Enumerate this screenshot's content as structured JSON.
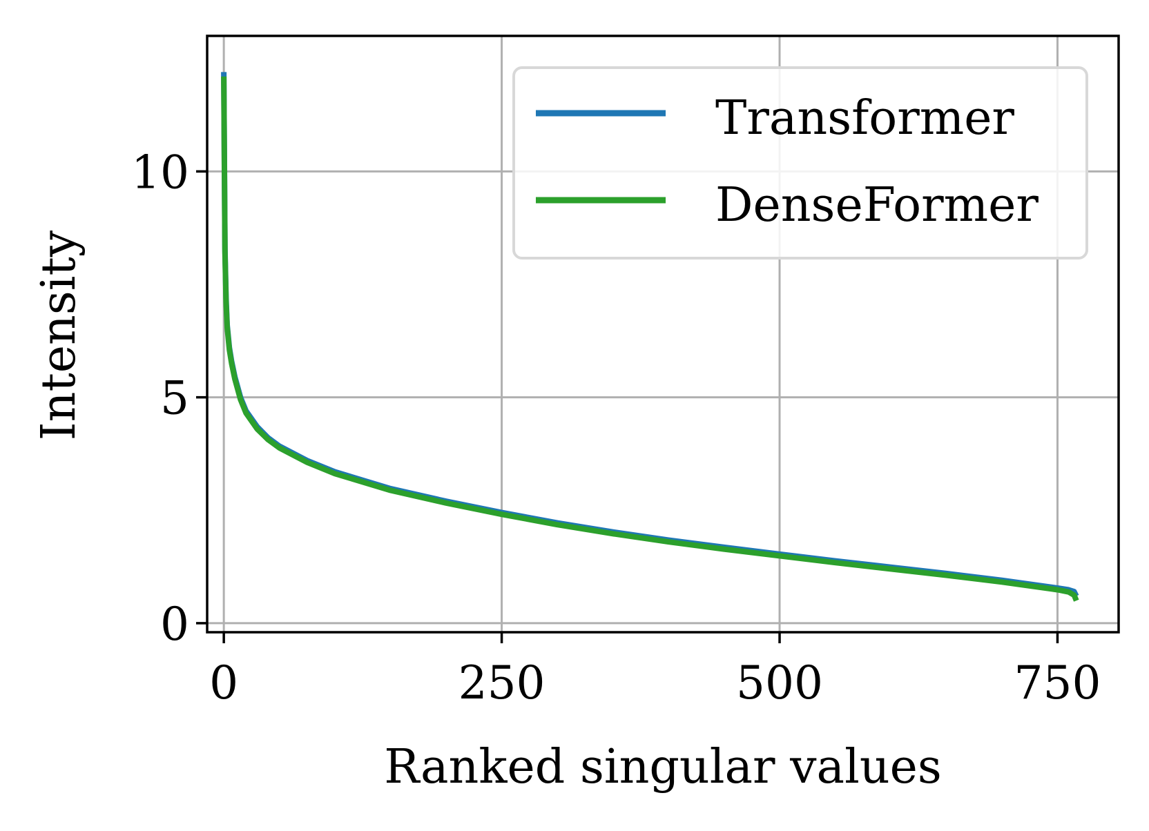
{
  "chart_data": {
    "type": "line",
    "title": "",
    "xlabel": "Ranked singular values",
    "ylabel": "Intensity",
    "xlim": [
      -15,
      805
    ],
    "ylim": [
      -0.2,
      13.0
    ],
    "xticks": [
      0,
      250,
      500,
      750
    ],
    "xtick_labels": [
      "0",
      "250",
      "500",
      "750"
    ],
    "yticks": [
      0,
      5,
      10
    ],
    "ytick_labels": [
      "0",
      "5",
      "10"
    ],
    "grid": true,
    "legend_position": "upper-right",
    "series": [
      {
        "name": "Transformer",
        "color": "#1f77b4",
        "x": [
          0,
          1,
          2,
          3,
          5,
          7,
          10,
          15,
          20,
          30,
          40,
          50,
          75,
          100,
          150,
          200,
          250,
          300,
          350,
          400,
          450,
          500,
          550,
          600,
          650,
          700,
          750,
          760,
          765,
          767
        ],
        "values": [
          12.2,
          8.3,
          7.2,
          6.6,
          6.1,
          5.8,
          5.45,
          5.0,
          4.7,
          4.35,
          4.1,
          3.92,
          3.6,
          3.35,
          2.98,
          2.7,
          2.45,
          2.22,
          2.02,
          1.84,
          1.68,
          1.53,
          1.38,
          1.24,
          1.1,
          0.95,
          0.78,
          0.74,
          0.7,
          0.6
        ]
      },
      {
        "name": "DenseFormer",
        "color": "#2ca02c",
        "x": [
          0,
          1,
          2,
          3,
          5,
          7,
          10,
          15,
          20,
          30,
          40,
          50,
          75,
          100,
          150,
          200,
          250,
          300,
          350,
          400,
          450,
          500,
          550,
          600,
          650,
          700,
          750,
          760,
          765,
          767
        ],
        "values": [
          12.1,
          8.2,
          7.1,
          6.55,
          6.05,
          5.75,
          5.4,
          4.95,
          4.65,
          4.3,
          4.06,
          3.88,
          3.56,
          3.31,
          2.94,
          2.66,
          2.41,
          2.18,
          1.98,
          1.8,
          1.64,
          1.49,
          1.34,
          1.2,
          1.06,
          0.91,
          0.74,
          0.69,
          0.62,
          0.5
        ]
      }
    ]
  }
}
